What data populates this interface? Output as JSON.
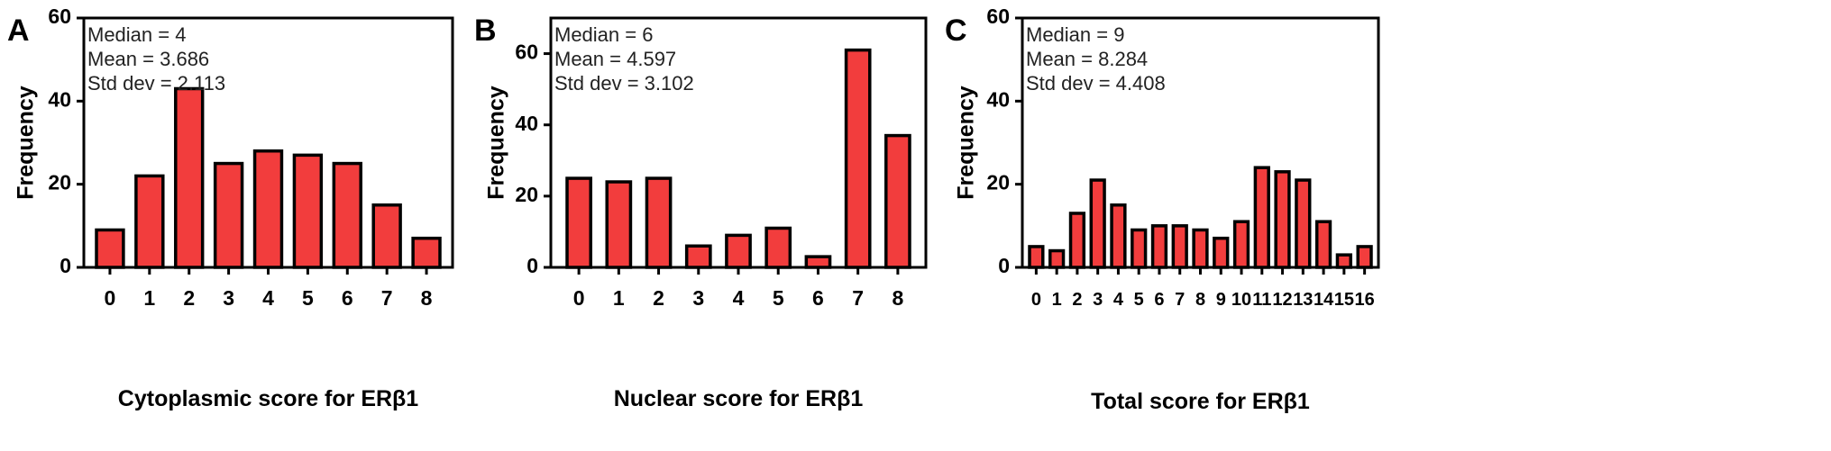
{
  "colors": {
    "bar_fill": "#f23d3d",
    "bar_stroke": "#000000"
  },
  "chart_data": [
    {
      "type": "bar",
      "panel": "A",
      "categories": [
        "0",
        "1",
        "2",
        "3",
        "4",
        "5",
        "6",
        "7",
        "8"
      ],
      "values": [
        9,
        22,
        43,
        25,
        28,
        27,
        25,
        15,
        7
      ],
      "xlabel": "Cytoplasmic score for ERβ1",
      "ylabel": "Frequency",
      "ylim": [
        0,
        60
      ],
      "yticks": [
        0,
        20,
        40,
        60
      ],
      "stats": [
        "Median = 4",
        "Mean = 3.686",
        "Std dev = 2.113"
      ]
    },
    {
      "type": "bar",
      "panel": "B",
      "categories": [
        "0",
        "1",
        "2",
        "3",
        "4",
        "5",
        "6",
        "7",
        "8"
      ],
      "values": [
        25,
        24,
        25,
        6,
        9,
        11,
        3,
        61,
        37
      ],
      "xlabel": "Nuclear score for ERβ1",
      "ylabel": "Frequency",
      "ylim": [
        0,
        70
      ],
      "yticks": [
        0,
        20,
        40,
        60
      ],
      "stats": [
        "Median = 6",
        "Mean = 4.597",
        "Std dev = 3.102"
      ]
    },
    {
      "type": "bar",
      "panel": "C",
      "categories": [
        "0",
        "1",
        "2",
        "3",
        "4",
        "5",
        "6",
        "7",
        "8",
        "9",
        "10",
        "11",
        "12",
        "13",
        "14",
        "15",
        "16"
      ],
      "values": [
        5,
        4,
        13,
        21,
        15,
        9,
        10,
        10,
        9,
        7,
        11,
        24,
        23,
        21,
        11,
        3,
        5
      ],
      "xlabel": "Total score for ERβ1",
      "ylabel": "Frequency",
      "ylim": [
        0,
        60
      ],
      "yticks": [
        0,
        20,
        40,
        60
      ],
      "stats": [
        "Median = 9",
        "Mean = 8.284",
        "Std dev = 4.408"
      ]
    }
  ]
}
